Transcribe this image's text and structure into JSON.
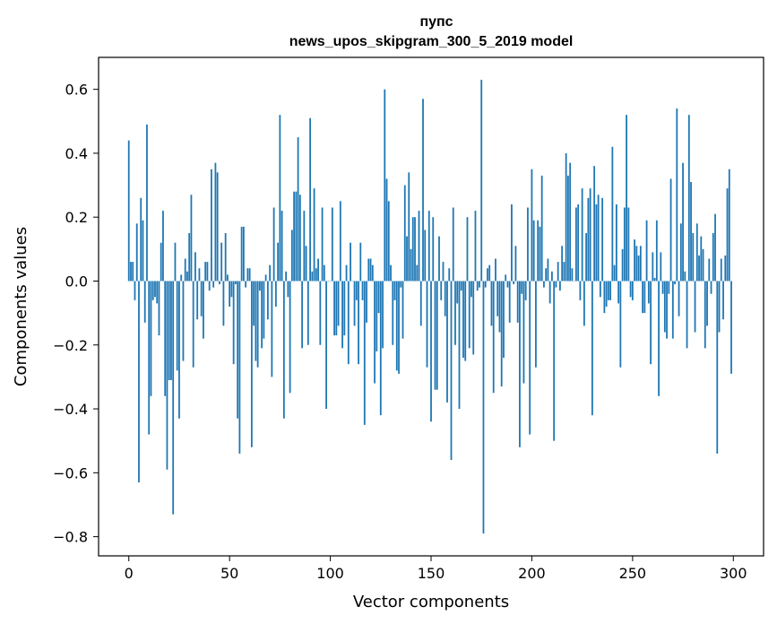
{
  "chart_data": {
    "type": "bar",
    "title": "пупс",
    "subtitle": "news_upos_skipgram_300_5_2019 model",
    "xlabel": "Vector components",
    "ylabel": "Components values",
    "xlim": [
      -15,
      315
    ],
    "ylim": [
      -0.86,
      0.7
    ],
    "xticks": [
      0,
      50,
      100,
      150,
      200,
      250,
      300
    ],
    "yticks": [
      -0.8,
      -0.6,
      -0.4,
      -0.2,
      0.0,
      0.2,
      0.4,
      0.6
    ],
    "ytick_labels": [
      "−0.8",
      "−0.6",
      "−0.4",
      "−0.2",
      "0.0",
      "0.2",
      "0.4",
      "0.6"
    ],
    "grid": false,
    "bar_color": "#1f77b4",
    "values": [
      0.44,
      0.06,
      0.06,
      -0.06,
      0.18,
      -0.63,
      0.26,
      0.19,
      -0.13,
      0.49,
      -0.48,
      -0.36,
      -0.06,
      -0.05,
      -0.07,
      -0.17,
      0.12,
      0.22,
      -0.36,
      -0.59,
      -0.31,
      -0.31,
      -0.73,
      0.12,
      -0.28,
      -0.43,
      0.02,
      -0.25,
      0.07,
      0.03,
      0.15,
      0.27,
      -0.27,
      0.09,
      -0.12,
      0.04,
      -0.11,
      -0.18,
      0.06,
      0.06,
      -0.03,
      0.35,
      -0.02,
      0.37,
      0.34,
      -0.01,
      0.12,
      -0.14,
      0.15,
      0.02,
      -0.08,
      -0.05,
      -0.26,
      -0.01,
      -0.43,
      -0.54,
      0.17,
      0.17,
      -0.02,
      0.04,
      0.04,
      -0.52,
      -0.14,
      -0.25,
      -0.27,
      -0.03,
      -0.21,
      -0.18,
      0.02,
      -0.12,
      0.05,
      -0.3,
      0.23,
      -0.08,
      0.12,
      0.52,
      0.22,
      -0.43,
      0.03,
      -0.05,
      -0.35,
      0.16,
      0.28,
      0.28,
      0.45,
      0.27,
      -0.21,
      0.22,
      0.11,
      -0.2,
      0.51,
      0.03,
      0.29,
      0.04,
      0.07,
      -0.2,
      0.23,
      0.05,
      -0.4,
      0.0,
      0.0,
      0.23,
      -0.17,
      -0.17,
      -0.14,
      0.25,
      -0.21,
      -0.17,
      0.05,
      -0.26,
      0.12,
      0.0,
      -0.14,
      -0.06,
      -0.26,
      0.12,
      -0.06,
      -0.45,
      -0.13,
      0.07,
      0.07,
      0.05,
      -0.32,
      -0.22,
      -0.1,
      -0.42,
      -0.21,
      0.6,
      0.32,
      0.25,
      0.05,
      -0.2,
      -0.06,
      -0.28,
      -0.29,
      -0.02,
      -0.18,
      0.3,
      0.14,
      0.34,
      0.1,
      0.2,
      0.2,
      0.05,
      0.22,
      -0.14,
      0.57,
      0.16,
      -0.27,
      0.22,
      -0.44,
      0.2,
      -0.34,
      -0.34,
      0.14,
      -0.06,
      0.06,
      -0.11,
      -0.38,
      0.04,
      -0.56,
      0.23,
      -0.2,
      -0.07,
      -0.4,
      -0.03,
      -0.24,
      -0.25,
      0.2,
      -0.21,
      -0.05,
      -0.23,
      0.22,
      -0.03,
      -0.02,
      0.63,
      -0.79,
      -0.02,
      0.04,
      0.05,
      -0.14,
      -0.35,
      0.07,
      -0.11,
      -0.16,
      -0.33,
      -0.24,
      0.02,
      -0.02,
      -0.13,
      0.24,
      -0.01,
      0.11,
      -0.13,
      -0.52,
      -0.04,
      -0.32,
      -0.06,
      0.23,
      -0.48,
      0.35,
      0.19,
      -0.27,
      0.19,
      0.17,
      0.33,
      -0.02,
      0.04,
      0.07,
      -0.07,
      0.03,
      -0.5,
      -0.02,
      0.06,
      -0.03,
      0.11,
      0.06,
      0.4,
      0.33,
      0.37,
      0.04,
      0.0,
      0.23,
      0.24,
      -0.06,
      0.29,
      -0.14,
      0.15,
      0.26,
      0.29,
      -0.42,
      0.36,
      0.24,
      0.27,
      -0.05,
      0.26,
      -0.1,
      -0.08,
      -0.06,
      -0.06,
      0.42,
      0.05,
      0.24,
      -0.07,
      -0.27,
      0.1,
      0.23,
      0.52,
      0.23,
      -0.05,
      -0.06,
      0.13,
      0.11,
      0.08,
      0.11,
      -0.1,
      -0.1,
      0.19,
      -0.07,
      -0.26,
      0.09,
      0.01,
      0.19,
      -0.36,
      0.09,
      -0.04,
      -0.16,
      -0.18,
      -0.04,
      0.32,
      -0.18,
      -0.01,
      0.54,
      -0.11,
      0.18,
      0.37,
      0.03,
      -0.21,
      0.52,
      0.31,
      0.15,
      -0.16,
      0.18,
      0.08,
      0.14,
      0.1,
      -0.21,
      -0.14,
      0.07,
      -0.04,
      0.15,
      0.21,
      -0.54,
      -0.16,
      0.07,
      -0.12,
      0.08,
      0.29,
      0.35,
      -0.29
    ]
  }
}
